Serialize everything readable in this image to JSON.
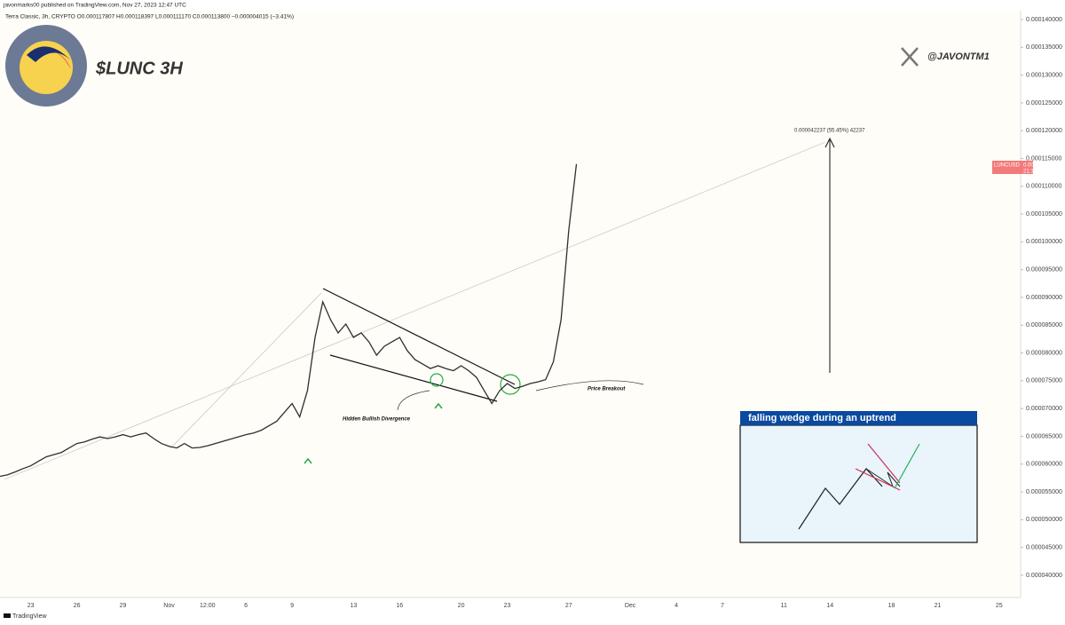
{
  "chart_data": {
    "type": "line",
    "header": "javonmarks00 published on TradingView.com, Nov 27, 2023 12:47 UTC",
    "symbol_info": "Terra Classic, 3h, CRYPTO  O0.000117807  H0.000118397  L0.000111170  C0.000113800  −0.000004015 (−3.41%)",
    "title": "$LUNC 3H",
    "watermark": "@JAVONTM1",
    "measure_label": "0.000042237 (55.45%) 42237",
    "annotations": [
      "Hidden Bullish Divergence",
      "Price Breakout"
    ],
    "inset_title": "falling wedge during an uptrend",
    "ticker": "LUNCUSD",
    "price_label": "0.000113800",
    "countdown": "21:12:28",
    "footer": "TradingView",
    "color": "#2f2f2f",
    "grid": false,
    "categories": [
      null,
      null,
      null,
      null,
      "23",
      null,
      null,
      null,
      null,
      null,
      "26",
      null,
      null,
      null,
      null,
      null,
      "29",
      null,
      null,
      null,
      null,
      null,
      "Nov",
      null,
      null,
      null,
      null,
      "12:00",
      null,
      null,
      null,
      null,
      "6",
      null,
      null,
      null,
      null,
      null,
      "9",
      null,
      null,
      null,
      null,
      null,
      null,
      null,
      "13",
      null,
      null,
      null,
      null,
      null,
      "16",
      null,
      null,
      null,
      null,
      null,
      null,
      null,
      "20",
      null,
      null,
      null,
      null,
      null,
      "23",
      null,
      null,
      null,
      null,
      null,
      null,
      null,
      "27",
      null,
      null,
      null,
      null,
      null,
      null,
      null,
      "Dec",
      null,
      null,
      null,
      null,
      null,
      "4",
      null,
      null,
      null,
      null,
      null,
      "7",
      null,
      null,
      null,
      null,
      null,
      null,
      null,
      "11",
      null,
      null,
      null,
      null,
      null,
      "14",
      null,
      null,
      null,
      null,
      null,
      null,
      null,
      "18",
      null,
      null,
      null,
      null,
      null,
      "21",
      null,
      null,
      null,
      null,
      null,
      null,
      null,
      "25",
      null
    ],
    "values": [
      5.78e-05,
      5.81e-05,
      5.86e-05,
      5.92e-05,
      5.97e-05,
      6.05e-05,
      6.13e-05,
      6.17e-05,
      6.21e-05,
      6.29e-05,
      6.37e-05,
      6.4e-05,
      6.45e-05,
      6.49e-05,
      6.46e-05,
      6.49e-05,
      6.53e-05,
      6.49e-05,
      6.53e-05,
      6.56e-05,
      6.46e-05,
      6.37e-05,
      6.32e-05,
      6.29e-05,
      6.37e-05,
      6.29e-05,
      6.3e-05,
      6.33e-05,
      6.37e-05,
      6.41e-05,
      6.45e-05,
      6.49e-05,
      6.53e-05,
      6.56e-05,
      6.61e-05,
      6.69e-05,
      6.77e-05,
      6.93e-05,
      7.09e-05,
      6.85e-05,
      7.32e-05,
      8.28e-05,
      8.92e-05,
      8.6e-05,
      8.36e-05,
      8.52e-05,
      8.28e-05,
      8.36e-05,
      8.2e-05,
      7.96e-05,
      8.12e-05,
      8.2e-05,
      8.28e-05,
      8.04e-05,
      7.88e-05,
      7.8e-05,
      7.72e-05,
      7.77e-05,
      7.72e-05,
      7.68e-05,
      7.77e-05,
      7.68e-05,
      7.56e-05,
      7.32e-05,
      7.09e-05,
      7.32e-05,
      7.45e-05,
      7.36e-05,
      7.4e-05,
      7.45e-05,
      7.48e-05,
      7.52e-05,
      7.84e-05,
      8.6e-05,
      0.000102,
      0.000114,
      null,
      null,
      null,
      null,
      null,
      null,
      null,
      null,
      null,
      null,
      null,
      null,
      null,
      null,
      null,
      null,
      null,
      null,
      null,
      null,
      null,
      null,
      null,
      null,
      null,
      null,
      null,
      null,
      null,
      null,
      null,
      null,
      null,
      null,
      null,
      null,
      null,
      null,
      null,
      null,
      null,
      null,
      null,
      null,
      null,
      null,
      null,
      null,
      null,
      null,
      null,
      null,
      null,
      null,
      null,
      null
    ],
    "ylim": [
      3.6e-05,
      0.0001416
    ],
    "yticks": [
      {
        "value": 4e-05,
        "label": "0.000040000"
      },
      {
        "value": 4.5e-05,
        "label": "0.000045000"
      },
      {
        "value": 5e-05,
        "label": "0.000050000"
      },
      {
        "value": 5.5e-05,
        "label": "0.000055000"
      },
      {
        "value": 6e-05,
        "label": "0.000060000"
      },
      {
        "value": 6.5e-05,
        "label": "0.000065000"
      },
      {
        "value": 7e-05,
        "label": "0.000070000"
      },
      {
        "value": 7.5e-05,
        "label": "0.000075000"
      },
      {
        "value": 8e-05,
        "label": "0.000080000"
      },
      {
        "value": 8.5e-05,
        "label": "0.000085000"
      },
      {
        "value": 9e-05,
        "label": "0.000090000"
      },
      {
        "value": 9.5e-05,
        "label": "0.000095000"
      },
      {
        "value": 0.0001,
        "label": "0.000100000"
      },
      {
        "value": 0.000105,
        "label": "0.000105000"
      },
      {
        "value": 0.00011,
        "label": "0.000110000"
      },
      {
        "value": 0.000115,
        "label": "0.000115000"
      },
      {
        "value": 0.00012,
        "label": "0.000120000"
      },
      {
        "value": 0.000125,
        "label": "0.000125000"
      },
      {
        "value": 0.00013,
        "label": "0.000130000"
      },
      {
        "value": 0.000135,
        "label": "0.000135000"
      },
      {
        "value": 0.00014,
        "label": "0.000140000"
      }
    ]
  }
}
